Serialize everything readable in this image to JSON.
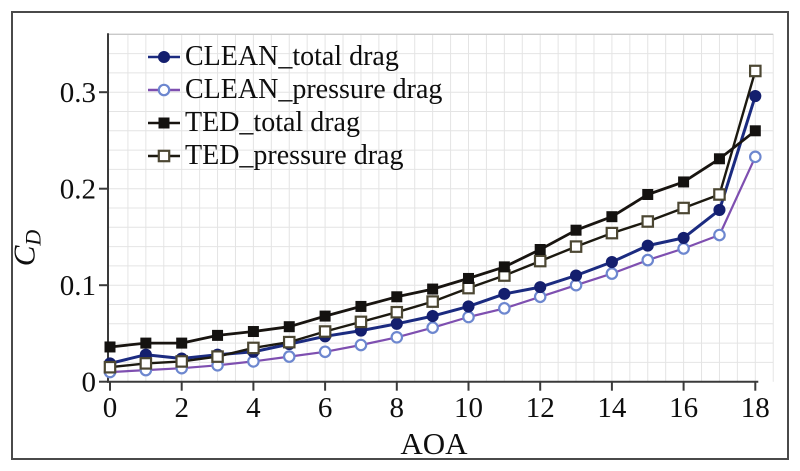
{
  "figure": {
    "background": "#ffffff",
    "border_color": "#4a4a4a",
    "axis_color": "#3a3a3a",
    "text_color": "#0e0e0e"
  },
  "chart_data": {
    "type": "line",
    "title": "",
    "xlabel": "AOA",
    "ylabel": "CD",
    "ylabel_main": "C",
    "ylabel_sub": "D",
    "x": [
      0,
      1,
      2,
      3,
      4,
      5,
      6,
      7,
      8,
      9,
      10,
      11,
      12,
      13,
      14,
      15,
      16,
      17,
      18
    ],
    "series": [
      {
        "name": "CLEAN_total drag",
        "marker": "filled-circle",
        "line_color": "#1b2b80",
        "marker_color": "#141f6e",
        "values": [
          0.019,
          0.028,
          0.024,
          0.028,
          0.031,
          0.039,
          0.047,
          0.053,
          0.06,
          0.068,
          0.078,
          0.091,
          0.098,
          0.11,
          0.124,
          0.141,
          0.149,
          0.178,
          0.296
        ]
      },
      {
        "name": "CLEAN_pressure drag",
        "marker": "open-circle",
        "line_color": "#7e4fb0",
        "marker_color": "#6d87cf",
        "values": [
          0.01,
          0.012,
          0.014,
          0.017,
          0.021,
          0.026,
          0.031,
          0.038,
          0.046,
          0.056,
          0.067,
          0.076,
          0.088,
          0.1,
          0.112,
          0.126,
          0.138,
          0.152,
          0.233
        ]
      },
      {
        "name": "TED_total drag",
        "marker": "filled-square",
        "line_color": "#181410",
        "marker_color": "#141210",
        "values": [
          0.036,
          0.04,
          0.04,
          0.048,
          0.052,
          0.057,
          0.068,
          0.078,
          0.088,
          0.096,
          0.107,
          0.119,
          0.137,
          0.157,
          0.171,
          0.194,
          0.207,
          0.231,
          0.26
        ]
      },
      {
        "name": "TED_pressure drag",
        "marker": "open-square",
        "line_color": "#1c1910",
        "marker_color": "#4c4733",
        "values": [
          0.015,
          0.019,
          0.021,
          0.026,
          0.035,
          0.041,
          0.052,
          0.062,
          0.072,
          0.083,
          0.097,
          0.11,
          0.125,
          0.14,
          0.154,
          0.166,
          0.18,
          0.194,
          0.322
        ]
      }
    ],
    "x_ticks": [
      0,
      2,
      4,
      6,
      8,
      10,
      12,
      14,
      16,
      18
    ],
    "x_tick_labels": [
      "0",
      "2",
      "4",
      "6",
      "8",
      "10",
      "12",
      "14",
      "16",
      "18"
    ],
    "y_ticks": [
      0,
      0.1,
      0.2,
      0.3
    ],
    "y_tick_labels": [
      "0",
      "0.1",
      "0.2",
      "0.3"
    ],
    "xlim": [
      0,
      18.5
    ],
    "ylim": [
      0,
      0.36
    ],
    "grid": {
      "on": true,
      "x_step": 0.5,
      "y_step": 0.02,
      "color": "#e4e4e4"
    },
    "legend_position": "top-left"
  }
}
